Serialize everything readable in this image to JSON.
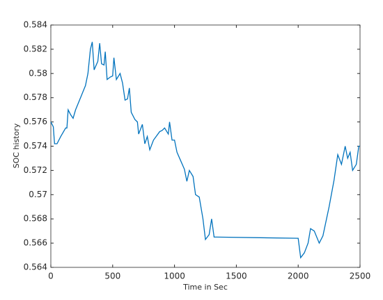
{
  "chart_data": {
    "type": "line",
    "xlabel": "Time in Sec",
    "ylabel": "SOC history",
    "xlim": [
      0,
      2500
    ],
    "xticks": [
      0,
      500,
      1000,
      1500,
      2000,
      2500
    ],
    "ylim": [
      0.564,
      0.584
    ],
    "yticks": [
      0.564,
      0.566,
      0.568,
      0.57,
      0.572,
      0.574,
      0.576,
      0.578,
      0.58,
      0.582,
      0.584
    ],
    "box": true,
    "series": [
      {
        "color": "#0072bd",
        "x": [
          0,
          20,
          30,
          50,
          80,
          120,
          130,
          140,
          160,
          180,
          200,
          240,
          280,
          300,
          320,
          335,
          350,
          380,
          395,
          410,
          430,
          440,
          455,
          480,
          500,
          510,
          530,
          560,
          580,
          600,
          620,
          635,
          650,
          680,
          700,
          710,
          740,
          760,
          780,
          800,
          830,
          880,
          900,
          920,
          950,
          960,
          980,
          1000,
          1020,
          1050,
          1080,
          1100,
          1120,
          1150,
          1170,
          1200,
          1230,
          1250,
          1280,
          1300,
          1320,
          1340,
          2000,
          2020,
          2050,
          2080,
          2100,
          2130,
          2170,
          2200,
          2250,
          2290,
          2320,
          2350,
          2380,
          2400,
          2420,
          2440,
          2470,
          2490,
          2500
        ],
        "values": [
          0.576,
          0.5756,
          0.5742,
          0.5742,
          0.5748,
          0.5755,
          0.5755,
          0.577,
          0.5766,
          0.5763,
          0.577,
          0.578,
          0.579,
          0.58,
          0.582,
          0.5826,
          0.5803,
          0.581,
          0.5825,
          0.5808,
          0.5807,
          0.5818,
          0.5795,
          0.5797,
          0.5798,
          0.5813,
          0.5795,
          0.58,
          0.5792,
          0.5778,
          0.5779,
          0.5788,
          0.5768,
          0.5762,
          0.576,
          0.575,
          0.5758,
          0.5742,
          0.5748,
          0.5737,
          0.5745,
          0.5752,
          0.5753,
          0.5755,
          0.575,
          0.576,
          0.5745,
          0.5745,
          0.5735,
          0.5728,
          0.5721,
          0.5711,
          0.572,
          0.5715,
          0.57,
          0.5698,
          0.568,
          0.5663,
          0.5667,
          0.568,
          0.5665,
          0.5665,
          0.5664,
          0.5648,
          0.5652,
          0.566,
          0.5672,
          0.567,
          0.566,
          0.5666,
          0.569,
          0.5712,
          0.5733,
          0.5725,
          0.574,
          0.573,
          0.5735,
          0.572,
          0.5725,
          0.574,
          0.574
        ]
      }
    ]
  }
}
